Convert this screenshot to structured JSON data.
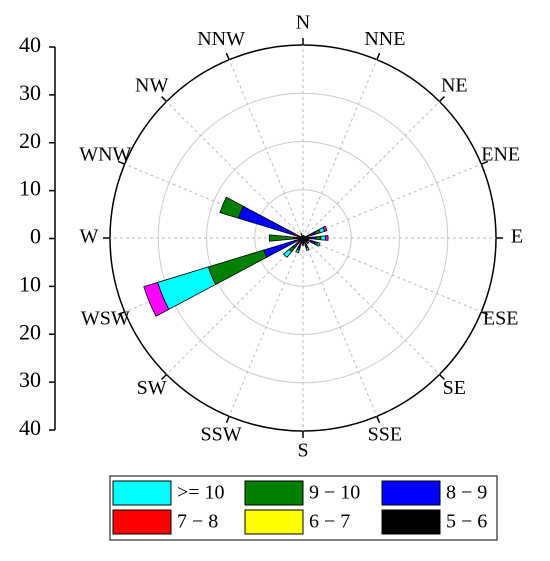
{
  "chart_data": {
    "type": "windrose",
    "directions": [
      "N",
      "NNE",
      "NE",
      "ENE",
      "E",
      "ESE",
      "SE",
      "SSE",
      "S",
      "SSW",
      "SW",
      "WSW",
      "W",
      "WNW",
      "NW",
      "NNW"
    ],
    "series": [
      {
        "name": "5 − 6",
        "color": "#000000",
        "values": [
          0.5,
          0.5,
          0.5,
          1,
          1,
          1,
          0.5,
          0.5,
          1,
          1,
          1,
          1,
          1,
          1,
          0.5,
          0.5
        ]
      },
      {
        "name": "6 − 7",
        "color": "#ffff00",
        "values": [
          0,
          0,
          0,
          0.2,
          0.2,
          0.2,
          0,
          0.2,
          0,
          0.2,
          0.2,
          0,
          0,
          0,
          0,
          0
        ]
      },
      {
        "name": "7 − 8",
        "color": "#ff0000",
        "values": [
          0,
          0,
          0,
          0.5,
          0.5,
          0.5,
          0,
          0.5,
          0,
          0.5,
          0.5,
          0.5,
          0.5,
          1,
          0,
          0.5
        ]
      },
      {
        "name": "8 − 9",
        "color": "#0000ff",
        "values": [
          0,
          0,
          0,
          1,
          1,
          1,
          0.5,
          0.5,
          0.5,
          0.5,
          1,
          7,
          0.5,
          12,
          0,
          0
        ]
      },
      {
        "name": "9 − 10",
        "color": "#008000",
        "values": [
          0,
          0,
          0,
          1,
          1,
          0.5,
          0.5,
          0.5,
          0,
          0.5,
          1,
          12,
          5,
          4,
          0,
          0
        ]
      },
      {
        "name": ">= 10",
        "color": "#00ffff",
        "values": [
          0,
          0,
          0,
          1,
          1,
          0.5,
          0,
          0.5,
          0,
          0.5,
          1.5,
          11,
          0,
          0,
          0,
          0
        ]
      },
      {
        "color": "#ff00ff",
        "values": [
          0,
          0,
          0,
          0.5,
          0.5,
          0,
          0,
          0,
          0,
          0,
          0,
          3,
          0,
          0,
          0,
          0
        ]
      }
    ],
    "rlim": [
      0,
      40
    ],
    "rticks": [
      10,
      20,
      30,
      40
    ],
    "ylim": [
      -40,
      40
    ],
    "yticks": [
      40,
      30,
      20,
      10,
      0,
      {
        "value": -10,
        "label": "10"
      },
      {
        "value": -20,
        "label": "20"
      },
      {
        "value": -30,
        "label": "30"
      },
      {
        "value": -40,
        "label": "40"
      }
    ],
    "grid": true
  }
}
